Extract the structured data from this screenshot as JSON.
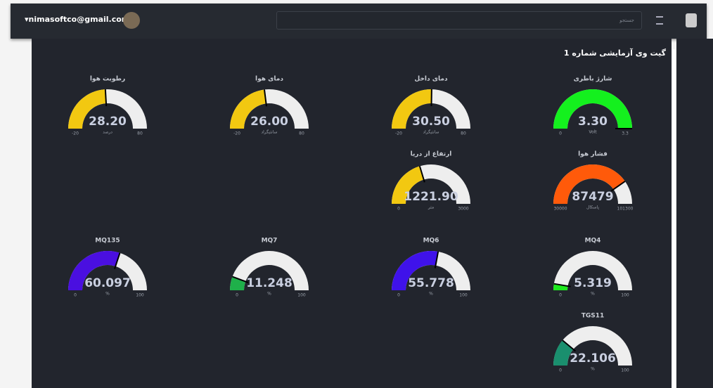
{
  "header": {
    "user_email": "nimasoftco@gmail.com",
    "search_placeholder": "جستجو"
  },
  "panel": {
    "title": "گیت وی آزمایشی شماره 1"
  },
  "gauges": [
    {
      "label": "رطوبت هوا",
      "value": 28.2,
      "value_label": "28.20",
      "min": -20,
      "max": 80,
      "unit": "درصد",
      "color": "#f2c811"
    },
    {
      "label": "دمای هوا",
      "value": 26,
      "value_label": "26.00",
      "min": -20,
      "max": 80,
      "unit": "سانتیگراد",
      "color": "#f2c811"
    },
    {
      "label": "دمای داخل",
      "value": 30.5,
      "value_label": "30.50",
      "min": -20,
      "max": 80,
      "unit": "سانتیگراد",
      "color": "#f2c811"
    },
    {
      "label": "شارژ باطری",
      "value": 3.3,
      "value_label": "3.30",
      "min": 0,
      "max": 3.3,
      "unit": "Volt",
      "color": "#14f01e"
    },
    {
      "label": "ارتفاع از دریا",
      "value": 1221.9,
      "value_label": "1221.90",
      "min": 0,
      "max": 3000,
      "unit": "متر",
      "color": "#f2c811"
    },
    {
      "label": "فشار هوا",
      "value": 87479,
      "min": 30000,
      "max": 101300,
      "unit": "پاسکال",
      "color": "#ff5a0a"
    },
    {
      "label": "MQ135",
      "value": 60.097,
      "min": 0,
      "max": 100,
      "unit": "%",
      "color": "#4a0fe0"
    },
    {
      "label": "MQ7",
      "value": 11.248,
      "min": 0,
      "max": 100,
      "unit": "%",
      "color": "#1fb04a"
    },
    {
      "label": "MQ6",
      "value": 55.778,
      "min": 0,
      "max": 100,
      "unit": "%",
      "color": "#3f12ea"
    },
    {
      "label": "MQ4",
      "value": 5.319,
      "min": 0,
      "max": 100,
      "unit": "%",
      "color": "#1ee81e"
    },
    {
      "label": "TGS11",
      "value": 22.106,
      "min": 0,
      "max": 100,
      "unit": "%",
      "color": "#1a8f6e"
    }
  ]
}
